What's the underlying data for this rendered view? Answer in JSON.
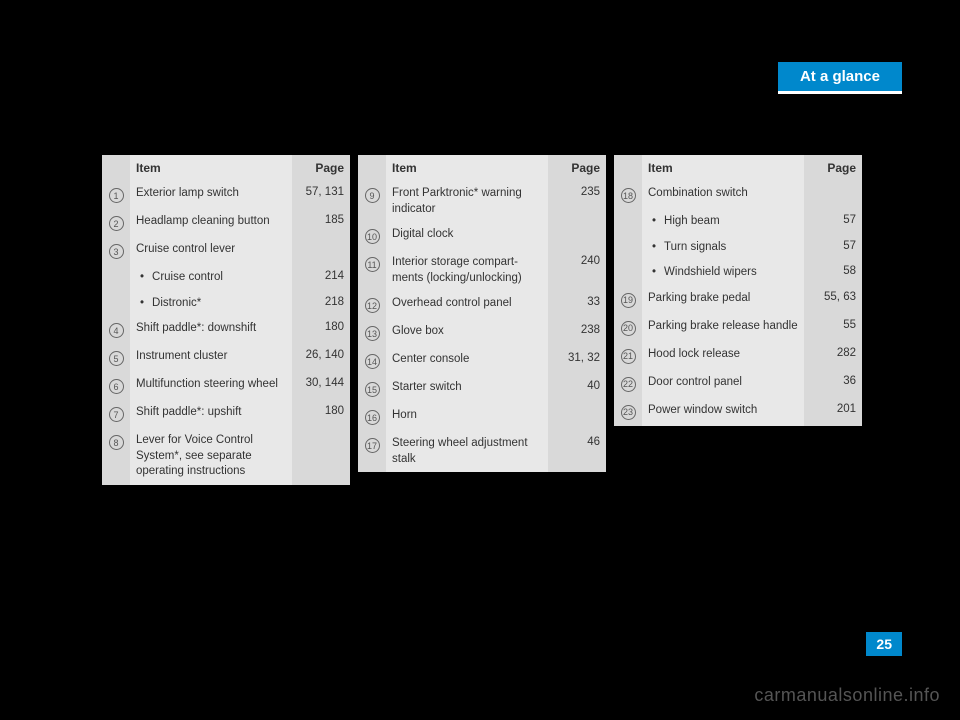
{
  "section_title": "At a glance",
  "page_number": "25",
  "watermark": "carmanualsonline.info",
  "header": {
    "item": "Item",
    "page": "Page"
  },
  "table1": [
    {
      "num": "1",
      "item": "Exterior lamp switch",
      "page": "57, 131"
    },
    {
      "num": "2",
      "item": "Headlamp cleaning button",
      "page": "185"
    },
    {
      "num": "3",
      "item": "Cruise control lever",
      "page": ""
    },
    {
      "bullet": true,
      "item": "Cruise control",
      "page": "214"
    },
    {
      "bullet": true,
      "item": "Distronic*",
      "page": "218"
    },
    {
      "num": "4",
      "item": "Shift paddle*: downshift",
      "page": "180"
    },
    {
      "num": "5",
      "item": "Instrument cluster",
      "page": "26, 140"
    },
    {
      "num": "6",
      "item": "Multifunction steering wheel",
      "page": "30, 144"
    },
    {
      "num": "7",
      "item": "Shift paddle*: upshift",
      "page": "180"
    },
    {
      "num": "8",
      "item": "Lever for Voice Control System*, see separate operating instructions",
      "page": ""
    }
  ],
  "table2": [
    {
      "num": "9",
      "item": "Front Parktronic* warning indicator",
      "page": "235"
    },
    {
      "num": "10",
      "item": "Digital clock",
      "page": ""
    },
    {
      "num": "11",
      "item": "Interior storage compart-ments (locking/unlocking)",
      "page": "240"
    },
    {
      "num": "12",
      "item": "Overhead control panel",
      "page": "33"
    },
    {
      "num": "13",
      "item": "Glove box",
      "page": "238"
    },
    {
      "num": "14",
      "item": "Center console",
      "page": "31, 32"
    },
    {
      "num": "15",
      "item": "Starter switch",
      "page": "40"
    },
    {
      "num": "16",
      "item": "Horn",
      "page": ""
    },
    {
      "num": "17",
      "item": "Steering wheel adjustment stalk",
      "page": "46"
    }
  ],
  "table3": [
    {
      "num": "18",
      "item": "Combination switch",
      "page": ""
    },
    {
      "bullet": true,
      "item": "High beam",
      "page": "57"
    },
    {
      "bullet": true,
      "item": "Turn signals",
      "page": "57"
    },
    {
      "bullet": true,
      "item": "Windshield wipers",
      "page": "58"
    },
    {
      "num": "19",
      "item": "Parking brake pedal",
      "page": "55, 63"
    },
    {
      "num": "20",
      "item": "Parking brake release handle",
      "page": "55"
    },
    {
      "num": "21",
      "item": "Hood lock release",
      "page": "282"
    },
    {
      "num": "22",
      "item": "Door control panel",
      "page": "36"
    },
    {
      "num": "23",
      "item": "Power window switch",
      "page": "201"
    }
  ]
}
